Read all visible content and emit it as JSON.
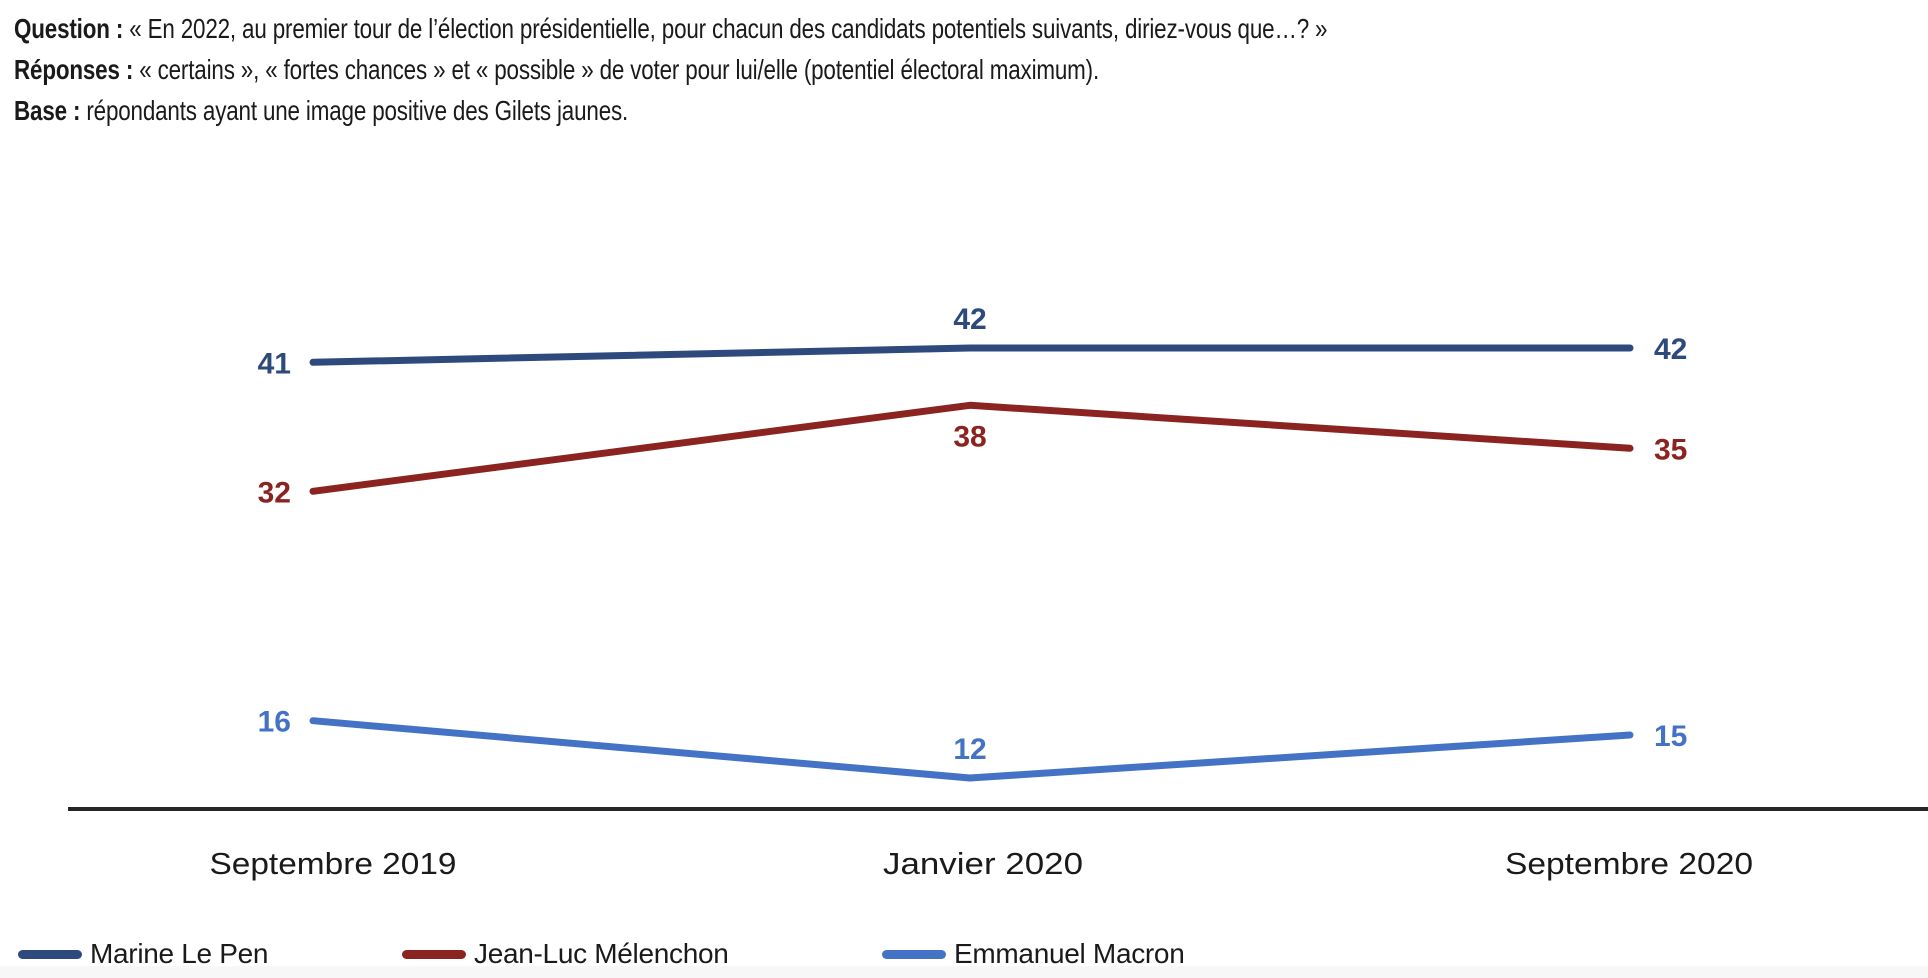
{
  "header": {
    "question_label": "Question :",
    "question_text": "« En 2022, au premier tour de l’élection présidentielle, pour chacun des candidats potentiels suivants, diriez-vous que…? »",
    "reponses_label": "Réponses :",
    "reponses_text": "« certains », « fortes chances » et « possible » de voter pour lui/elle (potentiel électoral maximum).",
    "base_label": "Base :",
    "base_text": "répondants ayant une image positive des Gilets jaunes."
  },
  "chart_data": {
    "type": "line",
    "categories": [
      "Septembre 2019",
      "Janvier 2020",
      "Septembre 2020"
    ],
    "series": [
      {
        "name": "Marine Le Pen",
        "color": "#2E4A7D",
        "values": [
          41,
          42,
          42
        ],
        "mid_label_position": "above"
      },
      {
        "name": "Jean-Luc Mélenchon",
        "color": "#8B2421",
        "values": [
          32,
          38,
          35
        ],
        "mid_label_position": "below"
      },
      {
        "name": "Emmanuel Macron",
        "color": "#4472C4",
        "values": [
          16,
          12,
          15
        ],
        "mid_label_position": "above"
      }
    ],
    "data_labels": true,
    "grid": false,
    "y_axis_visible": false,
    "x_axis_line_color": "#262626",
    "legend_position": "bottom-left"
  },
  "colors": {
    "text": "#1A1A1A",
    "background": "#FFFFFF",
    "footer_strip": "#F7F7F7"
  }
}
